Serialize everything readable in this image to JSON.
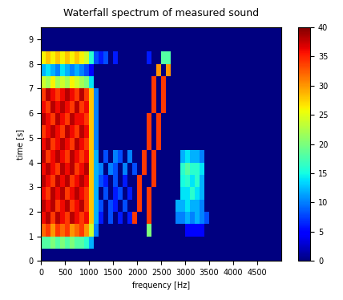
{
  "chart_data": {
    "type": "heatmap",
    "title": "Waterfall spectrum of measured sound",
    "x_label": "frequency [Hz]",
    "y_label": "time [s]",
    "xlim": [
      0,
      5000
    ],
    "ylim": [
      0,
      9.5
    ],
    "xticks": [
      0,
      500,
      1000,
      1500,
      2000,
      2500,
      3000,
      3500,
      4000,
      4500
    ],
    "yticks": [
      0,
      1,
      2,
      3,
      4,
      5,
      6,
      7,
      8,
      9
    ],
    "colorbar_range": [
      0,
      40
    ],
    "colorbar_ticks": [
      0,
      5,
      10,
      15,
      20,
      25,
      30,
      35,
      40
    ],
    "cells": [
      [
        0,
        0,
        0,
        0,
        0,
        0,
        0,
        0,
        0,
        0,
        0,
        0,
        0,
        0,
        0,
        0,
        0,
        0,
        0,
        0,
        0,
        0,
        0,
        0,
        0,
        0,
        0,
        0,
        0,
        0,
        0,
        0,
        0,
        0,
        0,
        0,
        0,
        0,
        0,
        0,
        0,
        0,
        0,
        0,
        0,
        0,
        0,
        0,
        0,
        0
      ],
      [
        18,
        18,
        20,
        18,
        20,
        18,
        20,
        18,
        18,
        16,
        12,
        0,
        0,
        0,
        0,
        0,
        0,
        0,
        0,
        0,
        0,
        0,
        0,
        0,
        0,
        0,
        0,
        0,
        0,
        0,
        0,
        0,
        0,
        0,
        0,
        0,
        0,
        0,
        0,
        0,
        0,
        0,
        0,
        0,
        0,
        0,
        0,
        0,
        0,
        0
      ],
      [
        32,
        34,
        30,
        34,
        32,
        34,
        30,
        32,
        34,
        30,
        24,
        10,
        0,
        0,
        0,
        0,
        0,
        0,
        0,
        0,
        0,
        0,
        20,
        0,
        0,
        0,
        0,
        0,
        0,
        0,
        5,
        5,
        5,
        5,
        0,
        0,
        0,
        0,
        0,
        0,
        0,
        0,
        0,
        0,
        0,
        0,
        0,
        0,
        0,
        0
      ],
      [
        36,
        38,
        34,
        38,
        36,
        34,
        38,
        36,
        34,
        36,
        28,
        12,
        6,
        0,
        8,
        0,
        6,
        0,
        6,
        34,
        0,
        0,
        34,
        0,
        0,
        0,
        0,
        0,
        10,
        10,
        12,
        10,
        12,
        10,
        8,
        0,
        0,
        0,
        0,
        0,
        0,
        0,
        0,
        0,
        0,
        0,
        0,
        0,
        0,
        0
      ],
      [
        38,
        36,
        38,
        34,
        36,
        38,
        34,
        36,
        38,
        34,
        28,
        12,
        8,
        0,
        8,
        6,
        0,
        8,
        0,
        0,
        34,
        0,
        34,
        0,
        0,
        0,
        0,
        0,
        12,
        12,
        14,
        12,
        12,
        10,
        0,
        0,
        0,
        0,
        0,
        0,
        0,
        0,
        0,
        0,
        0,
        0,
        0,
        0,
        0,
        0
      ],
      [
        36,
        34,
        38,
        36,
        38,
        34,
        36,
        38,
        36,
        34,
        28,
        12,
        0,
        8,
        0,
        6,
        8,
        0,
        6,
        0,
        34,
        0,
        34,
        0,
        0,
        0,
        0,
        0,
        0,
        14,
        14,
        16,
        14,
        12,
        0,
        0,
        0,
        0,
        0,
        0,
        0,
        0,
        0,
        0,
        0,
        0,
        0,
        0,
        0,
        0
      ],
      [
        38,
        36,
        34,
        38,
        36,
        38,
        34,
        36,
        38,
        36,
        28,
        12,
        8,
        6,
        0,
        8,
        0,
        6,
        0,
        0,
        34,
        0,
        0,
        34,
        0,
        0,
        0,
        0,
        0,
        15,
        16,
        14,
        16,
        12,
        0,
        0,
        0,
        0,
        0,
        0,
        0,
        0,
        0,
        0,
        0,
        0,
        0,
        0,
        0,
        0
      ],
      [
        36,
        38,
        36,
        34,
        38,
        36,
        38,
        34,
        36,
        38,
        28,
        12,
        10,
        0,
        10,
        8,
        0,
        10,
        0,
        8,
        0,
        34,
        0,
        34,
        0,
        0,
        0,
        0,
        0,
        16,
        18,
        16,
        16,
        14,
        0,
        0,
        0,
        0,
        0,
        0,
        0,
        0,
        0,
        0,
        0,
        0,
        0,
        0,
        0,
        0
      ],
      [
        38,
        34,
        36,
        38,
        36,
        34,
        38,
        36,
        34,
        36,
        28,
        12,
        0,
        8,
        0,
        10,
        8,
        0,
        10,
        0,
        0,
        34,
        0,
        34,
        0,
        0,
        0,
        0,
        0,
        12,
        14,
        12,
        12,
        10,
        0,
        0,
        0,
        0,
        0,
        0,
        0,
        0,
        0,
        0,
        0,
        0,
        0,
        0,
        0,
        0
      ],
      [
        36,
        38,
        34,
        36,
        38,
        36,
        34,
        38,
        36,
        34,
        28,
        10,
        0,
        0,
        0,
        0,
        0,
        0,
        0,
        0,
        0,
        0,
        34,
        0,
        34,
        0,
        0,
        0,
        0,
        0,
        0,
        0,
        0,
        0,
        0,
        0,
        0,
        0,
        0,
        0,
        0,
        0,
        0,
        0,
        0,
        0,
        0,
        0,
        0,
        0
      ],
      [
        34,
        36,
        38,
        36,
        34,
        38,
        36,
        34,
        38,
        36,
        28,
        10,
        0,
        0,
        0,
        0,
        0,
        0,
        0,
        0,
        0,
        0,
        34,
        0,
        34,
        0,
        0,
        0,
        0,
        0,
        0,
        0,
        0,
        0,
        0,
        0,
        0,
        0,
        0,
        0,
        0,
        0,
        0,
        0,
        0,
        0,
        0,
        0,
        0,
        0
      ],
      [
        38,
        36,
        34,
        38,
        36,
        34,
        38,
        36,
        36,
        34,
        28,
        10,
        0,
        0,
        0,
        0,
        0,
        0,
        0,
        0,
        0,
        0,
        34,
        0,
        34,
        0,
        0,
        0,
        0,
        0,
        0,
        0,
        0,
        0,
        0,
        0,
        0,
        0,
        0,
        0,
        0,
        0,
        0,
        0,
        0,
        0,
        0,
        0,
        0,
        0
      ],
      [
        36,
        34,
        38,
        36,
        38,
        36,
        34,
        38,
        34,
        36,
        28,
        10,
        0,
        0,
        0,
        0,
        0,
        0,
        0,
        0,
        0,
        0,
        0,
        34,
        0,
        34,
        0,
        0,
        0,
        0,
        0,
        0,
        0,
        0,
        0,
        0,
        0,
        0,
        0,
        0,
        0,
        0,
        0,
        0,
        0,
        0,
        0,
        0,
        0,
        0
      ],
      [
        34,
        38,
        36,
        34,
        36,
        38,
        36,
        34,
        38,
        34,
        28,
        10,
        0,
        0,
        0,
        0,
        0,
        0,
        0,
        0,
        0,
        0,
        0,
        34,
        0,
        34,
        0,
        0,
        0,
        0,
        0,
        0,
        0,
        0,
        0,
        0,
        0,
        0,
        0,
        0,
        0,
        0,
        0,
        0,
        0,
        0,
        0,
        0,
        0,
        0
      ],
      [
        24,
        22,
        26,
        22,
        24,
        22,
        26,
        24,
        22,
        20,
        14,
        0,
        0,
        0,
        0,
        0,
        0,
        0,
        0,
        0,
        0,
        0,
        0,
        34,
        0,
        34,
        0,
        0,
        0,
        0,
        0,
        0,
        0,
        0,
        0,
        0,
        0,
        0,
        0,
        0,
        0,
        0,
        0,
        0,
        0,
        0,
        0,
        0,
        0,
        0
      ],
      [
        12,
        14,
        12,
        10,
        14,
        12,
        10,
        12,
        10,
        8,
        5,
        0,
        0,
        0,
        0,
        0,
        0,
        0,
        0,
        0,
        0,
        0,
        0,
        0,
        30,
        0,
        30,
        0,
        0,
        0,
        0,
        0,
        0,
        0,
        0,
        0,
        0,
        0,
        0,
        0,
        0,
        0,
        0,
        0,
        0,
        0,
        0,
        0,
        0,
        0
      ],
      [
        26,
        28,
        26,
        28,
        26,
        28,
        26,
        28,
        26,
        24,
        16,
        8,
        6,
        8,
        0,
        6,
        0,
        0,
        0,
        0,
        0,
        0,
        6,
        0,
        0,
        18,
        18,
        0,
        0,
        0,
        0,
        0,
        0,
        0,
        0,
        0,
        0,
        0,
        0,
        0,
        0,
        0,
        0,
        0,
        0,
        0,
        0,
        0,
        0,
        0
      ],
      [
        0,
        0,
        0,
        0,
        0,
        0,
        0,
        0,
        0,
        0,
        0,
        0,
        0,
        0,
        0,
        0,
        0,
        0,
        0,
        0,
        0,
        0,
        0,
        0,
        0,
        0,
        0,
        0,
        0,
        0,
        0,
        0,
        0,
        0,
        0,
        0,
        0,
        0,
        0,
        0,
        0,
        0,
        0,
        0,
        0,
        0,
        0,
        0,
        0,
        0
      ],
      [
        0,
        0,
        0,
        0,
        0,
        0,
        0,
        0,
        0,
        0,
        0,
        0,
        0,
        0,
        0,
        0,
        0,
        0,
        0,
        0,
        0,
        0,
        0,
        0,
        0,
        0,
        0,
        0,
        0,
        0,
        0,
        0,
        0,
        0,
        0,
        0,
        0,
        0,
        0,
        0,
        0,
        0,
        0,
        0,
        0,
        0,
        0,
        0,
        0,
        0
      ]
    ]
  }
}
